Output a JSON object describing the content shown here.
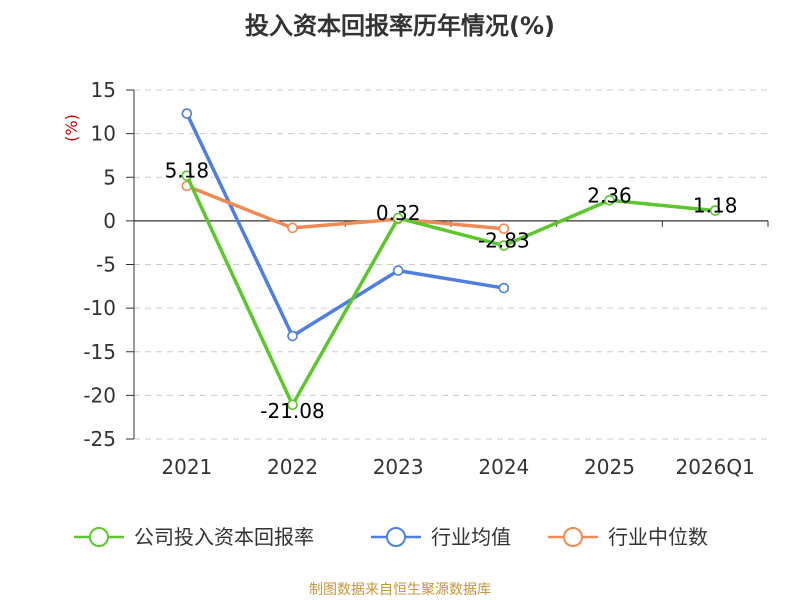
{
  "title": "投入资本回报率历年情况(%)",
  "source": "制图数据来自恒生聚源数据库",
  "chart_data": {
    "type": "line",
    "title": "投入资本回报率历年情况(%)",
    "ylabel": "(%)",
    "xlabel": "",
    "categories": [
      "2021",
      "2022",
      "2023",
      "2024",
      "2025",
      "2026Q1"
    ],
    "ylim": [
      -25,
      15
    ],
    "yticks": [
      15,
      10,
      5,
      0,
      -5,
      -10,
      -15,
      -20,
      -25
    ],
    "grid": true,
    "legend_position": "bottom",
    "series": [
      {
        "name": "公司投入资本回报率",
        "color": "#5cc72c",
        "values": [
          5.18,
          -21.08,
          0.32,
          -2.83,
          2.36,
          1.18
        ],
        "labels": [
          "5.18",
          "-21.08",
          "0.32",
          "-2.83",
          "2.36",
          "1.18"
        ]
      },
      {
        "name": "行业均值",
        "color": "#4e7fe0",
        "values": [
          12.3,
          -13.2,
          -5.7,
          -7.7,
          null,
          null
        ]
      },
      {
        "name": "行业中位数",
        "color": "#f08a55",
        "values": [
          4.0,
          -0.8,
          0.2,
          -0.9,
          null,
          null
        ]
      }
    ]
  }
}
